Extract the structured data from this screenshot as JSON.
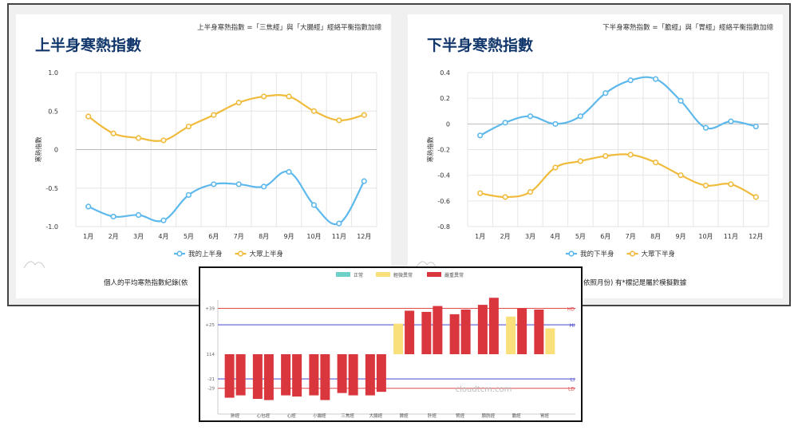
{
  "upper": {
    "title": "上半身寒熱指數",
    "formula": "上半身寒熱指數 =「三焦經」與「大腸經」經絡平衡指數加總",
    "bottom_note": "個人的平均寒熱指數紀錄(依"
  },
  "lower": {
    "title": "下半身寒熱指數",
    "formula": "下半身寒熱指數 =「膽經」與「胃經」經絡平衡指數加總",
    "bottom_note": "依照月份) 有*標記是屬於模擬數據"
  },
  "colors": {
    "blue": "#5db8ec",
    "yellow": "#f0bb3b",
    "red": "#d9363e",
    "pale_yellow": "#f9e07a",
    "teal": "#6fd0c8",
    "navy": "#11366b"
  },
  "chart_data": [
    {
      "type": "line",
      "title": "上半身寒熱指數",
      "ylabel": "寒熱指數",
      "categories": [
        "1月",
        "2月",
        "3月",
        "4月",
        "5月",
        "6月",
        "7月",
        "8月",
        "9月",
        "10月",
        "11月",
        "12月"
      ],
      "ylim": [
        -1.0,
        1.0
      ],
      "yticks": [
        1.0,
        0.5,
        0,
        -0.5,
        -1.0
      ],
      "ytick_labels": [
        "1.0",
        "0.5",
        "0",
        "-0.5",
        "-1.0"
      ],
      "grid": true,
      "legend": "bottom",
      "series": [
        {
          "name": "我的上半身",
          "color": "#5db8ec",
          "values": [
            -0.74,
            -0.87,
            -0.85,
            -0.92,
            -0.59,
            -0.45,
            -0.45,
            -0.48,
            -0.29,
            -0.72,
            -0.96,
            -0.41
          ]
        },
        {
          "name": "大眾上半身",
          "color": "#f0bb3b",
          "values": [
            0.43,
            0.21,
            0.15,
            0.12,
            0.3,
            0.45,
            0.61,
            0.69,
            0.69,
            0.5,
            0.38,
            0.45
          ]
        }
      ]
    },
    {
      "type": "line",
      "title": "下半身寒熱指數",
      "ylabel": "寒熱指數",
      "categories": [
        "1月",
        "2月",
        "3月",
        "4月",
        "5月",
        "6月",
        "7月",
        "8月",
        "9月",
        "10月",
        "11月",
        "12月"
      ],
      "ylim": [
        -0.8,
        0.4
      ],
      "yticks": [
        0.4,
        0.2,
        0,
        -0.2,
        -0.4,
        -0.6,
        -0.8
      ],
      "ytick_labels": [
        "0.4",
        "0.2",
        "0",
        "-0.2",
        "-0.4",
        "-0.6",
        "-0.8"
      ],
      "grid": true,
      "legend": "bottom",
      "series": [
        {
          "name": "我的下半身",
          "color": "#5db8ec",
          "values": [
            -0.09,
            0.01,
            0.06,
            0.0,
            0.06,
            0.24,
            0.34,
            0.35,
            0.18,
            -0.03,
            0.02,
            -0.02
          ]
        },
        {
          "name": "大眾下半身",
          "color": "#f0bb3b",
          "values": [
            -0.54,
            -0.57,
            -0.53,
            -0.34,
            -0.29,
            -0.25,
            -0.24,
            -0.3,
            -0.4,
            -0.48,
            -0.47,
            -0.57
          ]
        }
      ]
    },
    {
      "type": "bar",
      "legend": "top",
      "series_legend": [
        {
          "name": "正常",
          "color": "#6fd0c8"
        },
        {
          "name": "輕微異常",
          "color": "#f9e07a"
        },
        {
          "name": "嚴重異常",
          "color": "#d9363e"
        }
      ],
      "categories": [
        "肺經",
        "心包經",
        "心經",
        "小腸經",
        "三焦經",
        "大腸經",
        "脾經",
        "肝經",
        "腎經",
        "膀胱經",
        "膽經",
        "胃經"
      ],
      "ylim": [
        -45,
        50
      ],
      "yticks": [
        39,
        25,
        0,
        -21,
        -29
      ],
      "ytick_labels": [
        "+39",
        "+25",
        "114",
        "-21",
        "-29"
      ],
      "reference_lines": [
        {
          "value": 39,
          "color": "#e34a4a",
          "label": "HD"
        },
        {
          "value": 25,
          "color": "#4444cc",
          "label": "HI"
        },
        {
          "value": -21,
          "color": "#4444cc",
          "label": "LI"
        },
        {
          "value": -29,
          "color": "#e34a4a",
          "label": "LD"
        }
      ],
      "watermark": "cloudtcm.com",
      "bars": [
        {
          "category": "肺經",
          "left": -37,
          "right": -35,
          "left_status": "嚴重異常",
          "right_status": "嚴重異常"
        },
        {
          "category": "心包經",
          "left": -38,
          "right": -39,
          "left_status": "嚴重異常",
          "right_status": "嚴重異常"
        },
        {
          "category": "心經",
          "left": -35,
          "right": -36,
          "left_status": "嚴重異常",
          "right_status": "嚴重異常"
        },
        {
          "category": "小腸經",
          "left": -35,
          "right": -39,
          "left_status": "嚴重異常",
          "right_status": "嚴重異常"
        },
        {
          "category": "三焦經",
          "left": -33,
          "right": -35,
          "left_status": "嚴重異常",
          "right_status": "嚴重異常"
        },
        {
          "category": "大腸經",
          "left": -35,
          "right": -32,
          "left_status": "嚴重異常",
          "right_status": "嚴重異常"
        },
        {
          "category": "脾經",
          "left": 26,
          "right": 37,
          "left_status": "輕微異常",
          "right_status": "嚴重異常"
        },
        {
          "category": "肝經",
          "left": 36,
          "right": 41,
          "left_status": "嚴重異常",
          "right_status": "嚴重異常"
        },
        {
          "category": "腎經",
          "left": 34,
          "right": 38,
          "left_status": "嚴重異常",
          "right_status": "嚴重異常"
        },
        {
          "category": "膀胱經",
          "left": 42,
          "right": 48,
          "left_status": "嚴重異常",
          "right_status": "嚴重異常"
        },
        {
          "category": "膽經",
          "left": 32,
          "right": 39,
          "left_status": "輕微異常",
          "right_status": "嚴重異常"
        },
        {
          "category": "胃經",
          "left": 38,
          "right": 22,
          "left_status": "嚴重異常",
          "right_status": "輕微異常"
        }
      ]
    }
  ]
}
